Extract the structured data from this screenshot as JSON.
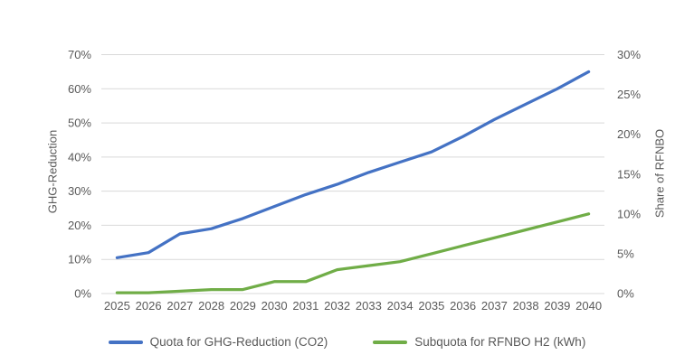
{
  "chart_data": {
    "type": "line",
    "title": "",
    "x_categories": [
      "2025",
      "2026",
      "2027",
      "2028",
      "2029",
      "2030",
      "2031",
      "2032",
      "2033",
      "2034",
      "2035",
      "2036",
      "2037",
      "2038",
      "2039",
      "2040"
    ],
    "series": [
      {
        "name": "Quota for GHG-Reduction (CO2)",
        "axis": "left",
        "color": "#4472C4",
        "values": [
          10.5,
          12,
          17.5,
          19,
          22,
          25.5,
          29,
          32,
          35.5,
          38.5,
          41.5,
          46,
          51,
          55.5,
          60,
          65
        ]
      },
      {
        "name": "Subquota for RFNBO H2 (kWh)",
        "axis": "right",
        "color": "#70AD47",
        "values": [
          0.1,
          0.1,
          0.3,
          0.5,
          0.5,
          1.5,
          1.5,
          3,
          3.5,
          4,
          5,
          6,
          7,
          8,
          9,
          10
        ]
      }
    ],
    "left_axis": {
      "title": "GHG-Reduction",
      "min": 0,
      "max": 70,
      "ticks": [
        {
          "v": 0,
          "label": "0%"
        },
        {
          "v": 10,
          "label": "10%"
        },
        {
          "v": 20,
          "label": "20%"
        },
        {
          "v": 30,
          "label": "30%"
        },
        {
          "v": 40,
          "label": "40%"
        },
        {
          "v": 50,
          "label": "50%"
        },
        {
          "v": 60,
          "label": "60%"
        },
        {
          "v": 70,
          "label": "70%"
        }
      ]
    },
    "right_axis": {
      "title": "Share of RFNBO",
      "min": 0,
      "max": 30,
      "ticks": [
        {
          "v": 0,
          "label": "0%"
        },
        {
          "v": 5,
          "label": "5%"
        },
        {
          "v": 10,
          "label": "10%"
        },
        {
          "v": 15,
          "label": "15%"
        },
        {
          "v": 20,
          "label": "20%"
        },
        {
          "v": 25,
          "label": "25%"
        },
        {
          "v": 30,
          "label": "30%"
        }
      ]
    },
    "grid": true,
    "legend_position": "bottom",
    "colors": {
      "gridline": "#D9D9D9",
      "text": "#595959",
      "background": "#FFFFFF"
    }
  }
}
